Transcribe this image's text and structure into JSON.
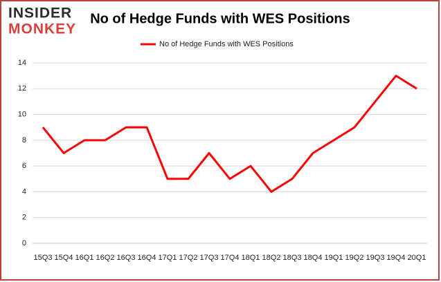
{
  "logo": {
    "top": "INSIDER",
    "bottom": "MONKEY"
  },
  "chart_data": {
    "type": "line",
    "title": "No of Hedge Funds with WES Positions",
    "categories": [
      "15Q3",
      "15Q4",
      "16Q1",
      "16Q2",
      "16Q3",
      "16Q4",
      "17Q1",
      "17Q2",
      "17Q3",
      "17Q4",
      "18Q1",
      "18Q2",
      "18Q3",
      "18Q4",
      "19Q1",
      "19Q2",
      "19Q3",
      "19Q4",
      "20Q1"
    ],
    "series": [
      {
        "name": "No of Hedge Funds with WES Positions",
        "color": "#ff0000",
        "values": [
          9,
          7,
          8,
          8,
          9,
          9,
          5,
          5,
          7,
          5,
          6,
          4,
          5,
          7,
          8,
          9,
          11,
          13,
          12
        ]
      }
    ],
    "ylim": [
      0,
      14
    ],
    "yticks": [
      0,
      2,
      4,
      6,
      8,
      10,
      12,
      14
    ],
    "grid": true,
    "legend": "top"
  }
}
